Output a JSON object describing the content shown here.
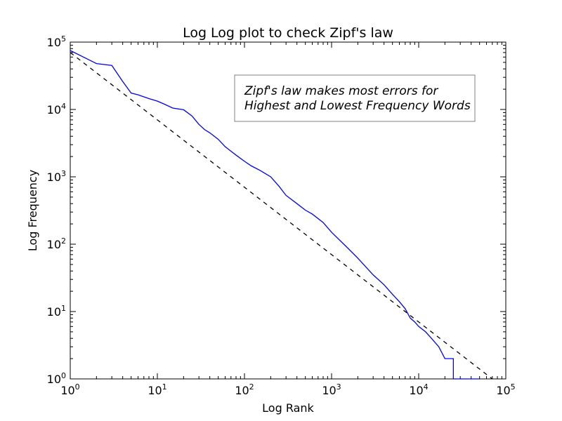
{
  "chart_data": {
    "type": "line",
    "title": "Log Log plot to check Zipf's law",
    "xlabel": "Log Rank",
    "ylabel": "Log Frequency",
    "xscale": "log",
    "yscale": "log",
    "xlim": [
      1,
      100000
    ],
    "ylim": [
      1,
      100000
    ],
    "grid": false,
    "x_ticks": [
      {
        "base": "10",
        "exp": "0"
      },
      {
        "base": "10",
        "exp": "1"
      },
      {
        "base": "10",
        "exp": "2"
      },
      {
        "base": "10",
        "exp": "3"
      },
      {
        "base": "10",
        "exp": "4"
      },
      {
        "base": "10",
        "exp": "5"
      }
    ],
    "y_ticks": [
      {
        "base": "10",
        "exp": "0"
      },
      {
        "base": "10",
        "exp": "1"
      },
      {
        "base": "10",
        "exp": "2"
      },
      {
        "base": "10",
        "exp": "3"
      },
      {
        "base": "10",
        "exp": "4"
      },
      {
        "base": "10",
        "exp": "5"
      }
    ],
    "x_tick_values": [
      1,
      10,
      100,
      1000,
      10000,
      100000
    ],
    "y_tick_values": [
      1,
      10,
      100,
      1000,
      10000,
      100000
    ],
    "annotation": {
      "lines": [
        "Zipf's law makes most errors for",
        "Highest and Lowest Frequency Words"
      ]
    },
    "series": [
      {
        "style": "solid",
        "color": "#0000ff",
        "points": [
          [
            1,
            75000
          ],
          [
            2,
            48000
          ],
          [
            3,
            45000
          ],
          [
            4,
            26000
          ],
          [
            5,
            17500
          ],
          [
            6,
            16500
          ],
          [
            8,
            14500
          ],
          [
            10,
            13300
          ],
          [
            12,
            12000
          ],
          [
            15,
            10500
          ],
          [
            20,
            9900
          ],
          [
            25,
            8000
          ],
          [
            30,
            6000
          ],
          [
            35,
            5000
          ],
          [
            40,
            4500
          ],
          [
            50,
            3600
          ],
          [
            60,
            2800
          ],
          [
            70,
            2400
          ],
          [
            80,
            2100
          ],
          [
            100,
            1700
          ],
          [
            120,
            1450
          ],
          [
            150,
            1250
          ],
          [
            200,
            1000
          ],
          [
            250,
            720
          ],
          [
            300,
            530
          ],
          [
            400,
            400
          ],
          [
            500,
            320
          ],
          [
            600,
            280
          ],
          [
            800,
            210
          ],
          [
            1000,
            150
          ],
          [
            1500,
            90
          ],
          [
            2000,
            62
          ],
          [
            3000,
            35
          ],
          [
            4000,
            25
          ],
          [
            5000,
            18
          ],
          [
            6000,
            14
          ],
          [
            7000,
            11
          ],
          [
            8000,
            8
          ],
          [
            9000,
            7
          ],
          [
            10000,
            6
          ],
          [
            12000,
            5
          ],
          [
            14000,
            4
          ],
          [
            17000,
            3
          ],
          [
            20000,
            2
          ],
          [
            25000,
            2
          ],
          [
            25000,
            1
          ],
          [
            50000,
            1
          ]
        ]
      },
      {
        "style": "dashed",
        "color": "#000000",
        "points": [
          [
            1,
            70000
          ],
          [
            70000,
            1
          ]
        ]
      }
    ]
  }
}
